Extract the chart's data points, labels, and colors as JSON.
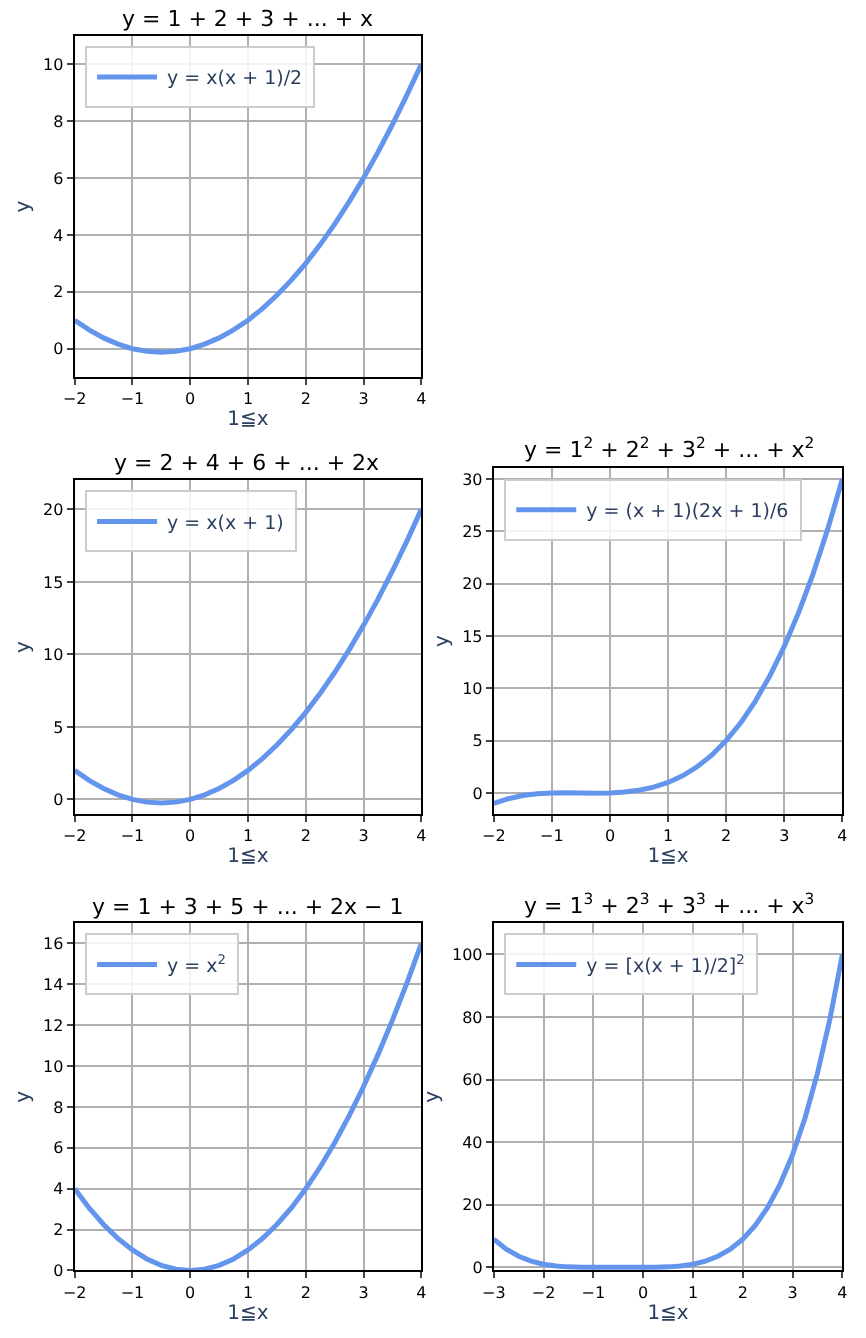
{
  "chart_data": [
    {
      "type": "line",
      "title": "y = 1 + 2 + 3 + ... + x",
      "xlabel": "1≦x",
      "ylabel": "y",
      "x": [
        -2,
        -1.75,
        -1.5,
        -1.25,
        -1,
        -0.75,
        -0.5,
        -0.25,
        0,
        0.25,
        0.5,
        0.75,
        1,
        1.25,
        1.5,
        1.75,
        2,
        2.25,
        2.5,
        2.75,
        3,
        3.25,
        3.5,
        3.75,
        4
      ],
      "series": [
        {
          "name": "y = x(x + 1)/2",
          "color": "#6495ed",
          "values": [
            1,
            0.66,
            0.38,
            0.16,
            0,
            -0.09,
            -0.12,
            -0.09,
            0,
            0.16,
            0.38,
            0.66,
            1,
            1.41,
            1.88,
            2.41,
            3,
            3.66,
            4.38,
            5.16,
            6,
            6.91,
            7.88,
            8.91,
            10
          ]
        }
      ],
      "xlim": [
        -2,
        4
      ],
      "xticks": [
        {
          "value": -2,
          "label": "−2"
        },
        {
          "value": -1,
          "label": "−1"
        },
        0,
        1,
        2,
        3,
        4
      ],
      "ylim": [
        -1,
        11
      ],
      "yticks": [
        0,
        2,
        4,
        6,
        8,
        10
      ],
      "grid": true,
      "legend": "top left"
    },
    {
      "type": "line",
      "title": "y = 2 + 4 + 6 + ... + 2x",
      "xlabel": "1≦x",
      "ylabel": "y",
      "x": [
        -2,
        -1.75,
        -1.5,
        -1.25,
        -1,
        -0.75,
        -0.5,
        -0.25,
        0,
        0.25,
        0.5,
        0.75,
        1,
        1.25,
        1.5,
        1.75,
        2,
        2.25,
        2.5,
        2.75,
        3,
        3.25,
        3.5,
        3.75,
        4
      ],
      "series": [
        {
          "name": "y = x(x + 1)",
          "color": "#6495ed",
          "values": [
            2,
            1.31,
            0.75,
            0.31,
            0,
            -0.19,
            -0.25,
            -0.19,
            0,
            0.31,
            0.75,
            1.31,
            2,
            2.81,
            3.75,
            4.81,
            6,
            7.31,
            8.75,
            10.31,
            12,
            13.81,
            15.75,
            17.81,
            20
          ]
        }
      ],
      "xlim": [
        -2,
        4
      ],
      "xticks": [
        {
          "value": -2,
          "label": "−2"
        },
        {
          "value": -1,
          "label": "−1"
        },
        0,
        1,
        2,
        3,
        4
      ],
      "ylim": [
        -1,
        22
      ],
      "yticks": [
        0,
        5,
        10,
        15,
        20
      ],
      "grid": true,
      "legend": "top left"
    },
    {
      "type": "line",
      "title": "y = 1$^{2}$ + 2$^{2}$ + 3$^{2}$ + ... + x$^{2}$",
      "xlabel": "1≦x",
      "ylabel": "y",
      "x": [
        -2,
        -1.75,
        -1.5,
        -1.25,
        -1,
        -0.75,
        -0.5,
        -0.25,
        0,
        0.25,
        0.5,
        0.75,
        1,
        1.25,
        1.5,
        1.75,
        2,
        2.25,
        2.5,
        2.75,
        3,
        3.25,
        3.5,
        3.75,
        4
      ],
      "series": [
        {
          "name": "y = (x + 1)(2x + 1)/6",
          "color": "#6495ed",
          "values": [
            -1,
            -0.55,
            -0.25,
            -0.08,
            0,
            0.02,
            0,
            -0.02,
            0,
            0.08,
            0.25,
            0.55,
            1,
            1.64,
            2.5,
            3.61,
            5,
            6.7,
            8.75,
            11.17,
            14,
            17.27,
            21,
            25.23,
            30
          ]
        }
      ],
      "xlim": [
        -2,
        4
      ],
      "xticks": [
        {
          "value": -2,
          "label": "−2"
        },
        {
          "value": -1,
          "label": "−1"
        },
        0,
        1,
        2,
        3,
        4
      ],
      "ylim": [
        -2,
        31
      ],
      "yticks": [
        0,
        5,
        10,
        15,
        20,
        25,
        30
      ],
      "grid": true,
      "legend": "top left"
    },
    {
      "type": "line",
      "title": "y = 1 + 3 + 5 + ... + 2x − 1",
      "xlabel": "1≦x",
      "ylabel": "y",
      "x": [
        -2,
        -1.75,
        -1.5,
        -1.25,
        -1,
        -0.75,
        -0.5,
        -0.25,
        0,
        0.25,
        0.5,
        0.75,
        1,
        1.25,
        1.5,
        1.75,
        2,
        2.25,
        2.5,
        2.75,
        3,
        3.25,
        3.5,
        3.75,
        4
      ],
      "series": [
        {
          "name": "y = x$^{2}$",
          "color": "#6495ed",
          "values": [
            4,
            3.06,
            2.25,
            1.56,
            1,
            0.56,
            0.25,
            0.06,
            0,
            0.06,
            0.25,
            0.56,
            1,
            1.56,
            2.25,
            3.06,
            4,
            5.06,
            6.25,
            7.56,
            9,
            10.56,
            12.25,
            14.06,
            16
          ]
        }
      ],
      "xlim": [
        -2,
        4
      ],
      "xticks": [
        {
          "value": -2,
          "label": "−2"
        },
        {
          "value": -1,
          "label": "−1"
        },
        0,
        1,
        2,
        3,
        4
      ],
      "ylim": [
        0,
        17
      ],
      "yticks": [
        0,
        2,
        4,
        6,
        8,
        10,
        12,
        14,
        16
      ],
      "grid": true,
      "legend": "top left"
    },
    {
      "type": "line",
      "title": "y = 1$^{3}$ + 2$^{3}$ + 3$^{3}$ + ... + x$^{3}$",
      "xlabel": "1≦x",
      "ylabel": "y",
      "x": [
        -3,
        -2.75,
        -2.5,
        -2.25,
        -2,
        -1.75,
        -1.5,
        -1.25,
        -1,
        -0.75,
        -0.5,
        -0.25,
        0,
        0.25,
        0.5,
        0.75,
        1,
        1.25,
        1.5,
        1.75,
        2,
        2.25,
        2.5,
        2.75,
        3,
        3.25,
        3.5,
        3.75,
        4
      ],
      "series": [
        {
          "name": "y = [x(x + 1)/2]$^{2}$",
          "color": "#6495ed",
          "values": [
            9,
            5.79,
            3.52,
            1.98,
            1,
            0.43,
            0.14,
            0.02,
            0,
            0.01,
            0.02,
            0.01,
            0,
            0.02,
            0.14,
            0.43,
            1,
            1.98,
            3.52,
            5.79,
            9,
            13.37,
            19.14,
            26.59,
            36,
            47.7,
            62.02,
            79.32,
            100
          ]
        }
      ],
      "xlim": [
        -3,
        4
      ],
      "xticks": [
        {
          "value": -3,
          "label": "−3"
        },
        {
          "value": -2,
          "label": "−2"
        },
        {
          "value": -1,
          "label": "−1"
        },
        0,
        1,
        2,
        3,
        4
      ],
      "ylim": [
        -1,
        110
      ],
      "yticks": [
        0,
        20,
        40,
        60,
        80,
        100
      ],
      "grid": true,
      "legend": "top left"
    }
  ]
}
